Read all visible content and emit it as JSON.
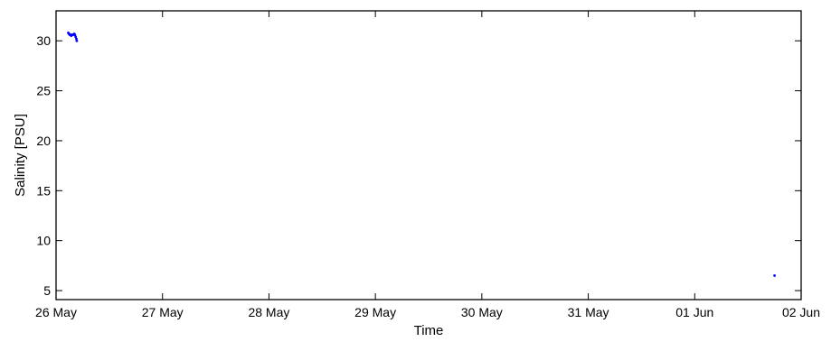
{
  "chart_data": {
    "type": "scatter",
    "title": "",
    "xlabel": "Time",
    "ylabel": "Salinity [PSU]",
    "x_unit": "date",
    "xlim": [
      "2013-05-26T00:00",
      "2013-06-02T00:00"
    ],
    "ylim": [
      4.1,
      33
    ],
    "x_ticks": [
      "26 May",
      "27 May",
      "28 May",
      "29 May",
      "30 May",
      "31 May",
      "01 Jun",
      "02 Jun"
    ],
    "y_ticks": [
      5,
      10,
      15,
      20,
      25,
      30
    ],
    "grid": false,
    "series_color": "#0000ff",
    "series": [
      {
        "points": [
          {
            "x": "2013-05-26T02:45",
            "y": 30.8
          },
          {
            "x": "2013-05-26T02:55",
            "y": 30.7
          },
          {
            "x": "2013-05-26T03:05",
            "y": 30.6
          },
          {
            "x": "2013-05-26T03:15",
            "y": 30.6
          },
          {
            "x": "2013-05-26T03:25",
            "y": 30.5
          },
          {
            "x": "2013-05-26T03:35",
            "y": 30.6
          },
          {
            "x": "2013-05-26T03:50",
            "y": 30.6
          },
          {
            "x": "2013-05-26T04:05",
            "y": 30.7
          },
          {
            "x": "2013-05-26T04:15",
            "y": 30.6
          },
          {
            "x": "2013-05-26T04:25",
            "y": 30.4
          },
          {
            "x": "2013-05-26T04:35",
            "y": 30.2
          },
          {
            "x": "2013-05-26T04:40",
            "y": 30.0
          },
          {
            "x": "2013-06-01T18:00",
            "y": 6.5
          }
        ]
      }
    ]
  }
}
